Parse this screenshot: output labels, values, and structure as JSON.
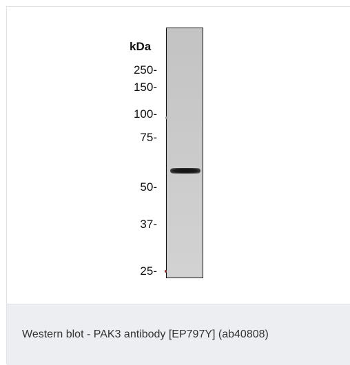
{
  "figure": {
    "unit_label": "kDa",
    "markers": [
      {
        "label": "250-",
        "kda": 250
      },
      {
        "label": "150-",
        "kda": 150
      },
      {
        "label": "100-",
        "kda": 100
      },
      {
        "label": "75-",
        "kda": 75
      },
      {
        "label": "50-",
        "kda": 50
      },
      {
        "label": "37-",
        "kda": 37
      },
      {
        "label": "25-",
        "kda": 25
      }
    ],
    "lane": {
      "bands": [
        {
          "approx_kda": 62
        }
      ]
    }
  },
  "caption": "Western blot - PAK3 antibody [EP797Y] (ab40808)"
}
